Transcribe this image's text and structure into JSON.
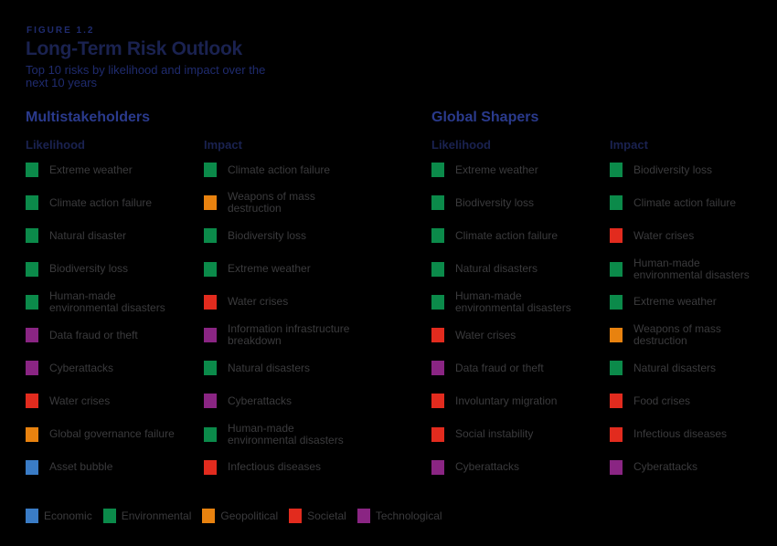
{
  "figure_label": "FIGURE 1.2",
  "title": "Long-Term Risk Outlook",
  "subtitle": "Top 10 risks by likelihood and impact over the next 10 years",
  "colors": {
    "Economic": "#3a7cc6",
    "Environmental": "#0b8a4a",
    "Geopolitical": "#e8820f",
    "Societal": "#e22b1e",
    "Technological": "#8a2583"
  },
  "groups": [
    {
      "title": "Multistakeholders",
      "likelihood_label": "Likelihood",
      "impact_label": "Impact",
      "likelihood": [
        {
          "label": "Extreme weather",
          "category": "Environmental"
        },
        {
          "label": "Climate action failure",
          "category": "Environmental"
        },
        {
          "label": "Natural disaster",
          "category": "Environmental"
        },
        {
          "label": "Biodiversity loss",
          "category": "Environmental"
        },
        {
          "label": "Human-made environmental disasters",
          "category": "Environmental"
        },
        {
          "label": "Data fraud or theft",
          "category": "Technological"
        },
        {
          "label": "Cyberattacks",
          "category": "Technological"
        },
        {
          "label": "Water crises",
          "category": "Societal"
        },
        {
          "label": "Global governance failure",
          "category": "Geopolitical"
        },
        {
          "label": "Asset bubble",
          "category": "Economic"
        }
      ],
      "impact": [
        {
          "label": "Climate action failure",
          "category": "Environmental"
        },
        {
          "label": "Weapons of mass destruction",
          "category": "Geopolitical"
        },
        {
          "label": "Biodiversity loss",
          "category": "Environmental"
        },
        {
          "label": "Extreme weather",
          "category": "Environmental"
        },
        {
          "label": "Water crises",
          "category": "Societal"
        },
        {
          "label": "Information infrastructure breakdown",
          "category": "Technological"
        },
        {
          "label": "Natural disasters",
          "category": "Environmental"
        },
        {
          "label": "Cyberattacks",
          "category": "Technological"
        },
        {
          "label": "Human-made environmental disasters",
          "category": "Environmental"
        },
        {
          "label": "Infectious diseases",
          "category": "Societal"
        }
      ]
    },
    {
      "title": "Global Shapers",
      "likelihood_label": "Likelihood",
      "impact_label": "Impact",
      "likelihood": [
        {
          "label": "Extreme weather",
          "category": "Environmental"
        },
        {
          "label": "Biodiversity loss",
          "category": "Environmental"
        },
        {
          "label": "Climate action failure",
          "category": "Environmental"
        },
        {
          "label": "Natural disasters",
          "category": "Environmental"
        },
        {
          "label": "Human-made environmental disasters",
          "category": "Environmental"
        },
        {
          "label": "Water crises",
          "category": "Societal"
        },
        {
          "label": "Data fraud or theft",
          "category": "Technological"
        },
        {
          "label": "Involuntary migration",
          "category": "Societal"
        },
        {
          "label": "Social instability",
          "category": "Societal"
        },
        {
          "label": "Cyberattacks",
          "category": "Technological"
        }
      ],
      "impact": [
        {
          "label": "Biodiversity loss",
          "category": "Environmental"
        },
        {
          "label": "Climate action failure",
          "category": "Environmental"
        },
        {
          "label": "Water crises",
          "category": "Societal"
        },
        {
          "label": "Human-made environmental disasters",
          "category": "Environmental"
        },
        {
          "label": "Extreme weather",
          "category": "Environmental"
        },
        {
          "label": "Weapons of mass destruction",
          "category": "Geopolitical"
        },
        {
          "label": "Natural disasters",
          "category": "Environmental"
        },
        {
          "label": "Food crises",
          "category": "Societal"
        },
        {
          "label": "Infectious diseases",
          "category": "Societal"
        },
        {
          "label": "Cyberattacks",
          "category": "Technological"
        }
      ]
    }
  ],
  "legend": [
    "Economic",
    "Environmental",
    "Geopolitical",
    "Societal",
    "Technological"
  ]
}
